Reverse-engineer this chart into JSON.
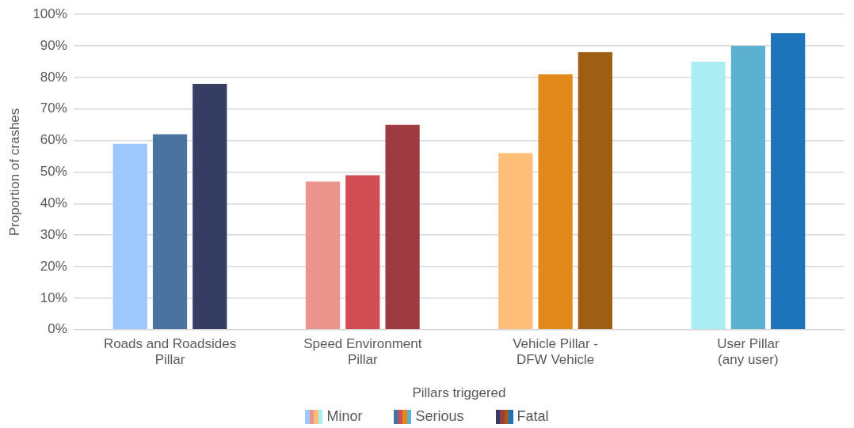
{
  "chart_data": {
    "type": "bar",
    "xlabel": "Pillars triggered",
    "ylabel": "Proportion of crashes",
    "categories": [
      "Roads and Roadsides\nPillar",
      "Speed Environment\nPillar",
      "Vehicle Pillar -\nDFW Vehicle",
      "User Pillar\n(any user)"
    ],
    "series": [
      {
        "name": "Minor",
        "colors": [
          "#9dc8fe",
          "#eb948b",
          "#fdbe7a",
          "#aaeef4"
        ],
        "values": [
          59,
          47,
          56,
          85
        ]
      },
      {
        "name": "Serious",
        "colors": [
          "#4a73a0",
          "#d24c53",
          "#e2891c",
          "#5cb1d1"
        ],
        "values": [
          62,
          49,
          81,
          90
        ]
      },
      {
        "name": "Fatal",
        "colors": [
          "#353e62",
          "#9d3a42",
          "#9e5e13",
          "#1e74ba"
        ],
        "values": [
          78,
          65,
          88,
          94
        ]
      }
    ],
    "ylim": [
      0,
      100
    ],
    "yticks": [
      {
        "value": 0,
        "label": "0%"
      },
      {
        "value": 10,
        "label": "10%"
      },
      {
        "value": 20,
        "label": "20%"
      },
      {
        "value": 30,
        "label": "30%"
      },
      {
        "value": 40,
        "label": "40%"
      },
      {
        "value": 50,
        "label": "50%"
      },
      {
        "value": 60,
        "label": "60%"
      },
      {
        "value": 70,
        "label": "70%"
      },
      {
        "value": 80,
        "label": "80%"
      },
      {
        "value": 90,
        "label": "90%"
      },
      {
        "value": 100,
        "label": "100%"
      }
    ],
    "grid": "y",
    "legend": "bottom"
  }
}
